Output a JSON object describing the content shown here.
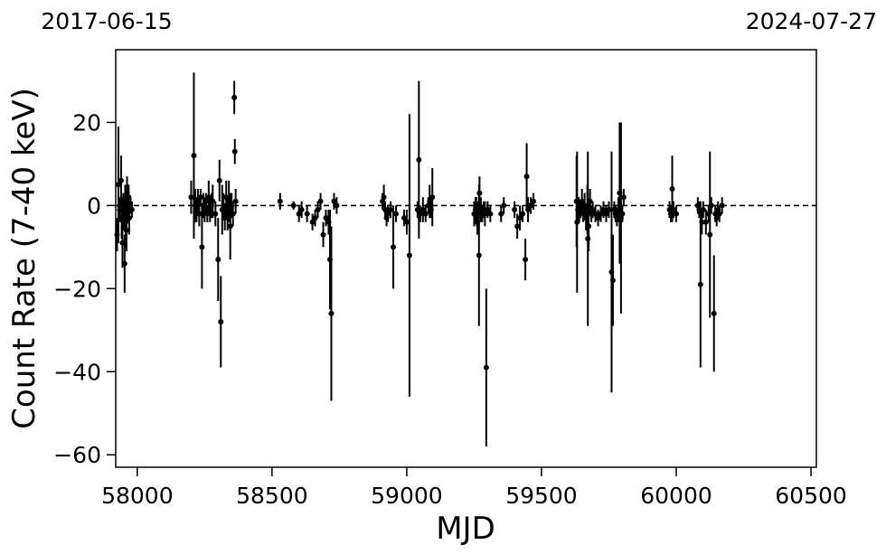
{
  "chart_data": {
    "type": "scatter",
    "title": "",
    "xlabel": "MJD",
    "ylabel": "Count Rate (7-40 keV)",
    "xlim": [
      57920,
      60520
    ],
    "ylim": [
      -63,
      37.5
    ],
    "xticks": [
      58000,
      58500,
      59000,
      59500,
      60000,
      60500
    ],
    "yticks": [
      -60,
      -40,
      -20,
      0,
      20
    ],
    "xtick_labels": [
      "58000",
      "58500",
      "59000",
      "59500",
      "60000",
      "60500"
    ],
    "ytick_labels": [
      "−60",
      "−40",
      "−20",
      "0",
      "20"
    ],
    "top_date_labels": {
      "left": "2017-06-15",
      "right": "2024-07-27"
    },
    "reference_line": {
      "y": 0,
      "style": "dashed"
    },
    "grid": false,
    "marker_color": "#000000",
    "points": [
      [
        57925,
        -7,
        4
      ],
      [
        57930,
        5,
        14
      ],
      [
        57935,
        -1,
        3
      ],
      [
        57940,
        6,
        6
      ],
      [
        57942,
        -3,
        5
      ],
      [
        57945,
        -9,
        6
      ],
      [
        57948,
        0,
        3
      ],
      [
        57950,
        -2,
        4
      ],
      [
        57953,
        -14,
        7
      ],
      [
        57955,
        1,
        4
      ],
      [
        57957,
        -4,
        6
      ],
      [
        57960,
        -6,
        5
      ],
      [
        57962,
        3,
        4
      ],
      [
        57965,
        -1,
        3
      ],
      [
        57968,
        2,
        3
      ],
      [
        57970,
        -3,
        4
      ],
      [
        57975,
        0,
        2
      ],
      [
        57980,
        -1,
        2
      ],
      [
        58200,
        2,
        4
      ],
      [
        58210,
        12,
        20
      ],
      [
        58215,
        0,
        4
      ],
      [
        58220,
        -1,
        3
      ],
      [
        58225,
        1,
        3
      ],
      [
        58230,
        -2,
        3
      ],
      [
        58235,
        2,
        2
      ],
      [
        58240,
        -10,
        10
      ],
      [
        58245,
        0,
        3
      ],
      [
        58250,
        -1,
        3
      ],
      [
        58255,
        1,
        2
      ],
      [
        58260,
        -2,
        2
      ],
      [
        58265,
        2,
        4
      ],
      [
        58270,
        -1,
        3
      ],
      [
        58275,
        0,
        3
      ],
      [
        58280,
        1,
        4
      ],
      [
        58290,
        -2,
        3
      ],
      [
        58300,
        -13,
        10
      ],
      [
        58305,
        6,
        5
      ],
      [
        58310,
        -28,
        11
      ],
      [
        58315,
        -1,
        6
      ],
      [
        58320,
        0,
        3
      ],
      [
        58325,
        -3,
        3
      ],
      [
        58330,
        2,
        4
      ],
      [
        58335,
        -2,
        4
      ],
      [
        58340,
        1,
        5
      ],
      [
        58345,
        -5,
        8
      ],
      [
        58350,
        0,
        3
      ],
      [
        58355,
        -2,
        3
      ],
      [
        58360,
        26,
        4
      ],
      [
        58362,
        13,
        3
      ],
      [
        58365,
        1,
        3
      ],
      [
        58530,
        1,
        2
      ],
      [
        58580,
        0,
        1
      ],
      [
        58600,
        -2,
        2
      ],
      [
        58610,
        -1,
        2
      ],
      [
        58630,
        -2,
        2
      ],
      [
        58650,
        -4,
        2
      ],
      [
        58660,
        -3,
        2
      ],
      [
        58670,
        -1,
        2
      ],
      [
        58680,
        1,
        2
      ],
      [
        58690,
        -7,
        3
      ],
      [
        58700,
        -3,
        2
      ],
      [
        58710,
        -4,
        3
      ],
      [
        58715,
        -13,
        12
      ],
      [
        58720,
        -26,
        21
      ],
      [
        58730,
        1,
        2
      ],
      [
        58740,
        0,
        2
      ],
      [
        58910,
        1,
        2
      ],
      [
        58915,
        2,
        3
      ],
      [
        58920,
        -1,
        2
      ],
      [
        58925,
        -3,
        2
      ],
      [
        58930,
        -2,
        2
      ],
      [
        58940,
        -1,
        2
      ],
      [
        58950,
        -10,
        10
      ],
      [
        58960,
        -2,
        2
      ],
      [
        58990,
        -3,
        2
      ],
      [
        59000,
        -4,
        3
      ],
      [
        59010,
        -12,
        34
      ],
      [
        59040,
        -1,
        2
      ],
      [
        59045,
        11,
        19
      ],
      [
        59050,
        -2,
        2
      ],
      [
        59060,
        -1,
        3
      ],
      [
        59070,
        -2,
        2
      ],
      [
        59080,
        0,
        2
      ],
      [
        59085,
        1,
        4
      ],
      [
        59090,
        -1,
        2
      ],
      [
        59095,
        2,
        7
      ],
      [
        59250,
        -2,
        3
      ],
      [
        59255,
        -1,
        3
      ],
      [
        59258,
        0,
        2
      ],
      [
        59260,
        -3,
        2
      ],
      [
        59262,
        -4,
        3
      ],
      [
        59265,
        -1,
        2
      ],
      [
        59268,
        -12,
        17
      ],
      [
        59270,
        3,
        4
      ],
      [
        59275,
        -1,
        3
      ],
      [
        59280,
        -2,
        2
      ],
      [
        59285,
        -1,
        2
      ],
      [
        59290,
        -2,
        3
      ],
      [
        59295,
        -39,
        19
      ],
      [
        59300,
        -1,
        2
      ],
      [
        59310,
        -2,
        2
      ],
      [
        59350,
        -2,
        2
      ],
      [
        59360,
        0,
        2
      ],
      [
        59400,
        -1,
        2
      ],
      [
        59410,
        -5,
        3
      ],
      [
        59420,
        -3,
        3
      ],
      [
        59430,
        -2,
        2
      ],
      [
        59440,
        -13,
        5
      ],
      [
        59445,
        7,
        8
      ],
      [
        59450,
        -1,
        3
      ],
      [
        59460,
        0,
        2
      ],
      [
        59470,
        1,
        2
      ],
      [
        59630,
        1,
        11
      ],
      [
        59632,
        -4,
        17
      ],
      [
        59635,
        -1,
        3
      ],
      [
        59638,
        0,
        2
      ],
      [
        59640,
        -2,
        2
      ],
      [
        59645,
        -1,
        2
      ],
      [
        59650,
        1,
        3
      ],
      [
        59655,
        -2,
        2
      ],
      [
        59660,
        0,
        3
      ],
      [
        59665,
        -3,
        3
      ],
      [
        59670,
        -1,
        6
      ],
      [
        59672,
        -8,
        21
      ],
      [
        59675,
        -5,
        6
      ],
      [
        59680,
        1,
        3
      ],
      [
        59685,
        -2,
        2
      ],
      [
        59690,
        -1,
        2
      ],
      [
        59700,
        -2,
        2
      ],
      [
        59710,
        -3,
        2
      ],
      [
        59720,
        -2,
        2
      ],
      [
        59730,
        -1,
        2
      ],
      [
        59740,
        -2,
        2
      ],
      [
        59750,
        -1,
        2
      ],
      [
        59760,
        -16,
        29
      ],
      [
        59765,
        -18,
        11
      ],
      [
        59770,
        -1,
        2
      ],
      [
        59775,
        -2,
        2
      ],
      [
        59780,
        -3,
        2
      ],
      [
        59785,
        -1,
        3
      ],
      [
        59790,
        3,
        17
      ],
      [
        59795,
        -3,
        23
      ],
      [
        59800,
        -2,
        2
      ],
      [
        59805,
        2,
        2
      ],
      [
        59975,
        -1,
        2
      ],
      [
        59980,
        -2,
        2
      ],
      [
        59985,
        4,
        8
      ],
      [
        59990,
        -1,
        2
      ],
      [
        60000,
        -2,
        2
      ],
      [
        60080,
        0,
        2
      ],
      [
        60085,
        -1,
        2
      ],
      [
        60090,
        -19,
        20
      ],
      [
        60095,
        -4,
        3
      ],
      [
        60100,
        -1,
        2
      ],
      [
        60110,
        -4,
        3
      ],
      [
        60120,
        -2,
        2
      ],
      [
        60125,
        -7,
        20
      ],
      [
        60130,
        0,
        2
      ],
      [
        60140,
        -26,
        14
      ],
      [
        60145,
        -2,
        2
      ],
      [
        60150,
        -3,
        2
      ],
      [
        60155,
        -1,
        2
      ],
      [
        60160,
        -2,
        2
      ],
      [
        60170,
        0,
        2
      ]
    ]
  }
}
